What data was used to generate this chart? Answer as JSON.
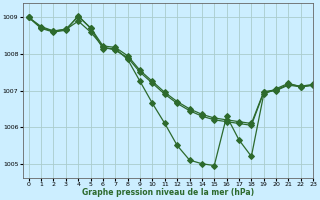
{
  "title": "Graphe pression niveau de la mer (hPa)",
  "background_color": "#cceeff",
  "grid_color": "#aacccc",
  "line_color": "#2d6a2d",
  "marker": "D",
  "xlim": [
    -0.5,
    23
  ],
  "ylim": [
    1004.6,
    1009.4
  ],
  "yticks": [
    1005,
    1006,
    1007,
    1008,
    1009
  ],
  "xticks": [
    0,
    1,
    2,
    3,
    4,
    5,
    6,
    7,
    8,
    9,
    10,
    11,
    12,
    13,
    14,
    15,
    16,
    17,
    18,
    19,
    20,
    21,
    22,
    23
  ],
  "line1_x": [
    0,
    1,
    2,
    3,
    4,
    5,
    6,
    7,
    8,
    9,
    10,
    11,
    12,
    13,
    14,
    15,
    16,
    17,
    18,
    19,
    20,
    21,
    22,
    23
  ],
  "line1_y": [
    1009.0,
    1008.7,
    1008.6,
    1008.65,
    1009.05,
    1008.7,
    1008.15,
    1008.15,
    1007.85,
    1007.25,
    1006.65,
    1006.1,
    1005.5,
    1005.1,
    1005.0,
    1004.95,
    1006.3,
    1005.65,
    1005.2,
    1006.9,
    1007.05,
    1007.2,
    1007.1,
    1007.15
  ],
  "line2_x": [
    0,
    1,
    2,
    3,
    4,
    5,
    6,
    7,
    8,
    9,
    10,
    11,
    12,
    13,
    14,
    15,
    16,
    17,
    18,
    19,
    20,
    21,
    22,
    23
  ],
  "line2_y": [
    1009.0,
    1008.72,
    1008.62,
    1008.67,
    1008.9,
    1008.6,
    1008.2,
    1008.1,
    1007.9,
    1007.5,
    1007.2,
    1006.9,
    1006.65,
    1006.45,
    1006.3,
    1006.2,
    1006.15,
    1006.1,
    1006.05,
    1006.95,
    1007.0,
    1007.15,
    1007.1,
    1007.15
  ],
  "line3_x": [
    0,
    1,
    2,
    3,
    4,
    5,
    6,
    7,
    8,
    9,
    10,
    11,
    12,
    13,
    14,
    15,
    16,
    17,
    18,
    19,
    20,
    21,
    22,
    23
  ],
  "line3_y": [
    1009.0,
    1008.75,
    1008.63,
    1008.68,
    1009.02,
    1008.72,
    1008.22,
    1008.18,
    1007.95,
    1007.55,
    1007.25,
    1006.95,
    1006.7,
    1006.5,
    1006.35,
    1006.25,
    1006.2,
    1006.15,
    1006.1,
    1006.97,
    1007.02,
    1007.17,
    1007.12,
    1007.17
  ]
}
